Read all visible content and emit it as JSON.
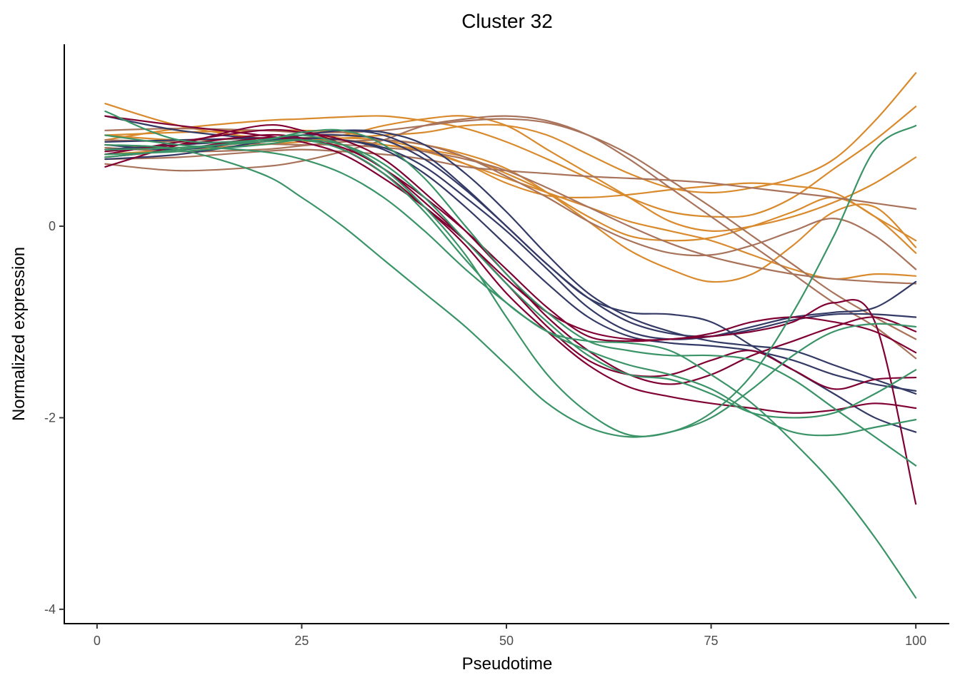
{
  "chart_data": {
    "type": "line",
    "title": "Cluster 32",
    "xlabel": "Pseudotime",
    "ylabel": "Normalized expression",
    "xlim": [
      -4,
      104
    ],
    "ylim": [
      -4.15,
      1.9
    ],
    "xticks": [
      0,
      25,
      50,
      75,
      100
    ],
    "xtick_labels": [
      "0",
      "25",
      "50",
      "75",
      "100"
    ],
    "yticks": [
      -4,
      -2,
      0
    ],
    "ytick_labels": [
      "-4",
      "-2",
      "0"
    ],
    "grid": false,
    "legend": "none",
    "colors": {
      "orange": "#D98A2C",
      "brown": "#A8735A",
      "navy": "#343A66",
      "crimson": "#800034",
      "green": "#3A9467"
    },
    "x": [
      1,
      10,
      20,
      25,
      30,
      35,
      40,
      45,
      50,
      55,
      60,
      65,
      70,
      75,
      80,
      85,
      90,
      95,
      100
    ],
    "series": [
      {
        "name": "orange-1",
        "color": "orange",
        "values": [
          1.28,
          1.05,
          0.92,
          0.9,
          0.92,
          0.95,
          0.98,
          1.05,
          1.05,
          0.95,
          0.75,
          0.55,
          0.4,
          0.35,
          0.4,
          0.5,
          0.7,
          1.1,
          1.6
        ]
      },
      {
        "name": "orange-2",
        "color": "orange",
        "values": [
          0.9,
          1.02,
          1.1,
          1.12,
          1.14,
          1.15,
          1.1,
          1.02,
          0.88,
          0.7,
          0.5,
          0.3,
          0.15,
          0.1,
          0.12,
          0.3,
          0.6,
          0.9,
          1.25
        ]
      },
      {
        "name": "orange-3",
        "color": "orange",
        "values": [
          0.8,
          0.85,
          0.9,
          0.92,
          0.95,
          1.05,
          1.12,
          1.15,
          1.05,
          0.8,
          0.55,
          0.3,
          0.05,
          -0.05,
          0.0,
          0.1,
          0.25,
          0.45,
          0.72
        ]
      },
      {
        "name": "orange-4",
        "color": "orange",
        "values": [
          0.95,
          0.98,
          1.0,
          1.0,
          0.98,
          0.9,
          0.8,
          0.65,
          0.45,
          0.32,
          0.3,
          0.33,
          0.38,
          0.42,
          0.45,
          0.42,
          0.35,
          0.1,
          -0.15
        ]
      },
      {
        "name": "orange-5",
        "color": "orange",
        "values": [
          0.85,
          0.82,
          0.88,
          0.9,
          0.92,
          0.9,
          0.85,
          0.75,
          0.6,
          0.35,
          0.05,
          -0.25,
          -0.45,
          -0.58,
          -0.5,
          -0.2,
          0.15,
          0.2,
          -0.22
        ]
      },
      {
        "name": "orange-6",
        "color": "orange",
        "values": [
          0.95,
          0.9,
          0.92,
          0.92,
          0.9,
          0.85,
          0.8,
          0.72,
          0.55,
          0.35,
          0.1,
          -0.1,
          -0.15,
          -0.12,
          0.0,
          0.15,
          0.3,
          0.1,
          -0.28
        ]
      },
      {
        "name": "orange-7",
        "color": "orange",
        "values": [
          0.75,
          0.8,
          0.85,
          0.88,
          0.9,
          0.85,
          0.78,
          0.65,
          0.5,
          0.35,
          0.2,
          0.05,
          -0.05,
          -0.15,
          -0.3,
          -0.45,
          -0.55,
          -0.5,
          -0.52
        ]
      },
      {
        "name": "brown-1",
        "color": "brown",
        "values": [
          0.7,
          0.72,
          0.78,
          0.8,
          0.78,
          0.75,
          0.7,
          0.62,
          0.58,
          0.55,
          0.52,
          0.5,
          0.48,
          0.45,
          0.4,
          0.35,
          0.3,
          0.24,
          0.18
        ]
      },
      {
        "name": "brown-2",
        "color": "brown",
        "values": [
          0.65,
          0.58,
          0.62,
          0.68,
          0.78,
          0.9,
          1.05,
          1.12,
          1.15,
          1.1,
          0.95,
          0.7,
          0.4,
          0.1,
          -0.2,
          -0.5,
          -0.8,
          -1.05,
          -1.38
        ]
      },
      {
        "name": "brown-3",
        "color": "brown",
        "values": [
          1.0,
          1.02,
          1.0,
          0.98,
          0.98,
          1.0,
          1.05,
          1.1,
          1.12,
          1.08,
          0.95,
          0.75,
          0.48,
          0.2,
          -0.1,
          -0.4,
          -0.7,
          -0.95,
          -1.18
        ]
      },
      {
        "name": "brown-4",
        "color": "brown",
        "values": [
          0.82,
          0.78,
          0.8,
          0.84,
          0.88,
          0.9,
          0.85,
          0.72,
          0.52,
          0.3,
          0.05,
          -0.15,
          -0.28,
          -0.3,
          -0.2,
          -0.05,
          0.08,
          -0.1,
          -0.45
        ]
      },
      {
        "name": "brown-5",
        "color": "brown",
        "values": [
          0.9,
          0.88,
          0.86,
          0.85,
          0.85,
          0.82,
          0.78,
          0.7,
          0.58,
          0.4,
          0.2,
          0.0,
          -0.18,
          -0.32,
          -0.42,
          -0.5,
          -0.55,
          -0.58,
          -0.6
        ]
      },
      {
        "name": "navy-1",
        "color": "navy",
        "values": [
          1.15,
          1.0,
          0.92,
          0.95,
          1.0,
          0.95,
          0.75,
          0.4,
          0.0,
          -0.4,
          -0.75,
          -1.0,
          -1.12,
          -1.15,
          -1.08,
          -0.98,
          -0.92,
          -0.92,
          -0.95
        ]
      },
      {
        "name": "navy-2",
        "color": "navy",
        "values": [
          0.7,
          0.75,
          0.88,
          0.95,
          1.0,
          0.98,
          0.85,
          0.55,
          0.15,
          -0.3,
          -0.7,
          -0.95,
          -1.1,
          -1.2,
          -1.25,
          -1.3,
          -1.45,
          -1.6,
          -1.75
        ]
      },
      {
        "name": "navy-3",
        "color": "navy",
        "values": [
          0.85,
          0.8,
          0.9,
          0.95,
          0.95,
          0.9,
          0.7,
          0.38,
          0.0,
          -0.4,
          -0.75,
          -0.9,
          -0.92,
          -1.0,
          -1.25,
          -1.5,
          -1.75,
          -2.0,
          -2.15
        ]
      },
      {
        "name": "navy-4",
        "color": "navy",
        "values": [
          0.8,
          0.85,
          0.9,
          0.92,
          0.9,
          0.82,
          0.62,
          0.3,
          -0.05,
          -0.45,
          -0.85,
          -1.1,
          -1.18,
          -1.15,
          -1.05,
          -0.95,
          -0.9,
          -0.85,
          -0.58
        ]
      },
      {
        "name": "navy-5",
        "color": "navy",
        "values": [
          0.88,
          0.9,
          0.92,
          0.92,
          0.9,
          0.8,
          0.55,
          0.2,
          -0.2,
          -0.6,
          -0.95,
          -1.15,
          -1.22,
          -1.25,
          -1.3,
          -1.4,
          -1.55,
          -1.65,
          -1.72
        ]
      },
      {
        "name": "crimson-1",
        "color": "crimson",
        "values": [
          0.62,
          0.85,
          1.05,
          1.0,
          0.85,
          0.6,
          0.3,
          -0.05,
          -0.45,
          -0.85,
          -1.15,
          -1.2,
          -1.18,
          -1.15,
          -1.1,
          -1.0,
          -0.8,
          -1.0,
          -2.9
        ]
      },
      {
        "name": "crimson-2",
        "color": "crimson",
        "values": [
          1.15,
          1.05,
          0.95,
          0.88,
          0.75,
          0.5,
          0.2,
          -0.15,
          -0.55,
          -0.9,
          -1.1,
          -1.18,
          -1.18,
          -1.12,
          -1.0,
          -0.95,
          -1.0,
          -1.1,
          -1.32
        ]
      },
      {
        "name": "crimson-3",
        "color": "crimson",
        "values": [
          0.78,
          0.85,
          0.95,
          0.92,
          0.8,
          0.55,
          0.2,
          -0.2,
          -0.7,
          -1.1,
          -1.45,
          -1.68,
          -1.78,
          -1.85,
          -1.9,
          -1.95,
          -1.92,
          -1.85,
          -1.9
        ]
      },
      {
        "name": "crimson-4",
        "color": "crimson",
        "values": [
          0.72,
          0.8,
          0.92,
          0.9,
          0.82,
          0.6,
          0.25,
          -0.15,
          -0.6,
          -1.05,
          -1.4,
          -1.55,
          -1.55,
          -1.4,
          -1.3,
          -1.5,
          -1.7,
          -1.6,
          -1.58
        ]
      },
      {
        "name": "crimson-5",
        "color": "crimson",
        "values": [
          0.75,
          0.88,
          1.0,
          0.98,
          0.9,
          0.7,
          0.35,
          -0.05,
          -0.5,
          -0.95,
          -1.3,
          -1.55,
          -1.65,
          -1.55,
          -1.35,
          -1.2,
          -1.05,
          -0.95,
          -1.1
        ]
      },
      {
        "name": "green-1",
        "color": "green",
        "values": [
          0.95,
          0.85,
          0.78,
          0.7,
          0.55,
          0.3,
          -0.05,
          -0.45,
          -0.8,
          -1.1,
          -1.2,
          -1.22,
          -1.3,
          -1.55,
          -1.85,
          -2.25,
          -2.7,
          -3.25,
          -3.88
        ]
      },
      {
        "name": "green-2",
        "color": "green",
        "values": [
          0.72,
          0.8,
          0.9,
          0.95,
          0.85,
          0.6,
          0.2,
          -0.3,
          -0.95,
          -1.55,
          -1.95,
          -2.18,
          -2.15,
          -1.95,
          -1.55,
          -0.9,
          -0.1,
          0.8,
          1.05
        ]
      },
      {
        "name": "green-3",
        "color": "green",
        "values": [
          1.2,
          0.9,
          0.9,
          0.98,
          1.0,
          0.85,
          0.5,
          0.0,
          -0.5,
          -0.9,
          -1.2,
          -1.3,
          -1.35,
          -1.35,
          -1.4,
          -1.6,
          -1.9,
          -2.2,
          -2.5
        ]
      },
      {
        "name": "green-4",
        "color": "green",
        "values": [
          0.75,
          0.78,
          0.85,
          0.9,
          0.85,
          0.65,
          0.3,
          -0.15,
          -0.6,
          -1.0,
          -1.35,
          -1.55,
          -1.6,
          -1.75,
          -1.95,
          -2.0,
          -1.95,
          -1.75,
          -1.5
        ]
      },
      {
        "name": "green-5",
        "color": "green",
        "values": [
          0.8,
          0.82,
          0.88,
          0.9,
          0.8,
          0.55,
          0.15,
          -0.35,
          -0.8,
          -1.1,
          -1.3,
          -1.45,
          -1.55,
          -1.7,
          -1.95,
          -2.15,
          -2.18,
          -2.1,
          -2.02
        ]
      },
      {
        "name": "green-6",
        "color": "green",
        "values": [
          0.85,
          0.8,
          0.55,
          0.3,
          0.0,
          -0.35,
          -0.7,
          -1.05,
          -1.45,
          -1.85,
          -2.1,
          -2.2,
          -2.15,
          -2.0,
          -1.7,
          -1.35,
          -1.1,
          -1.02,
          -1.05
        ]
      }
    ]
  }
}
